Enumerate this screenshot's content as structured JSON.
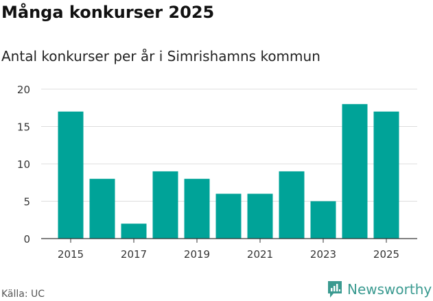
{
  "title": "Många konkurser 2025",
  "subtitle": "Antal konkurser per år i Simrishamns kommun",
  "source": "Källa: UC",
  "brand": "Newsworthy",
  "colors": {
    "bar": "#00a398",
    "grid": "#dddddd",
    "brand": "#3a9a90"
  },
  "chart_data": {
    "type": "bar",
    "title": "Många konkurser 2025",
    "subtitle": "Antal konkurser per år i Simrishamns kommun",
    "xlabel": "",
    "ylabel": "",
    "categories": [
      "2015",
      "2016",
      "2017",
      "2018",
      "2019",
      "2020",
      "2021",
      "2022",
      "2023",
      "2024",
      "2025"
    ],
    "values": [
      17,
      8,
      2,
      9,
      8,
      6,
      6,
      9,
      5,
      18,
      17
    ],
    "ylim": [
      0,
      20
    ],
    "yticks": [
      0,
      5,
      10,
      15,
      20
    ],
    "xtick_labels": [
      "2015",
      "2017",
      "2019",
      "2021",
      "2023",
      "2025"
    ],
    "grid": true
  }
}
